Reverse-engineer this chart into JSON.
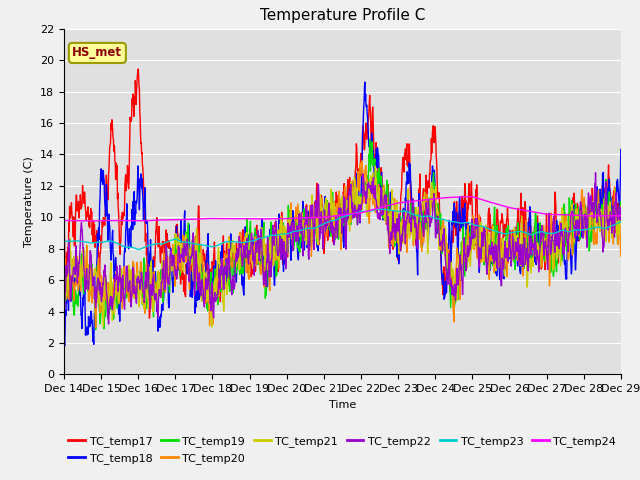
{
  "title": "Temperature Profile C",
  "xlabel": "Time",
  "ylabel": "Temperature (C)",
  "ylim": [
    0,
    22
  ],
  "annotation_text": "HS_met",
  "series_names": [
    "TC_temp17",
    "TC_temp18",
    "TC_temp19",
    "TC_temp20",
    "TC_temp21",
    "TC_temp22",
    "TC_temp23",
    "TC_temp24"
  ],
  "series_colors": [
    "#ff0000",
    "#0000ff",
    "#00dd00",
    "#ff8800",
    "#cccc00",
    "#9900cc",
    "#00cccc",
    "#ff00ff"
  ],
  "xtick_labels": [
    "Dec 14",
    "Dec 15",
    "Dec 16",
    "Dec 17",
    "Dec 18",
    "Dec 19",
    "Dec 20",
    "Dec 21",
    "Dec 22",
    "Dec 23",
    "Dec 24",
    "Dec 25",
    "Dec 26",
    "Dec 27",
    "Dec 28",
    "Dec 29"
  ],
  "fig_bg_color": "#f0f0f0",
  "plot_bg_color": "#e0e0e0",
  "grid_color": "#ffffff",
  "title_fontsize": 11,
  "axis_fontsize": 8,
  "tick_fontsize": 8,
  "legend_fontsize": 8,
  "lw": 1.0
}
